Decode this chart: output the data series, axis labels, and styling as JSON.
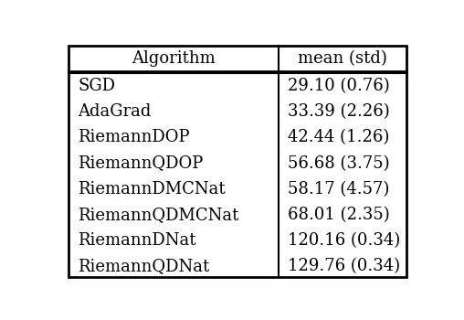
{
  "header": [
    "Algorithm",
    "mean (std)"
  ],
  "rows": [
    [
      "SGD",
      "29.10 (0.76)"
    ],
    [
      "AdaGrad",
      "33.39 (2.26)"
    ],
    [
      "RiemannDOP",
      "42.44 (1.26)"
    ],
    [
      "RiemannQDOP",
      "56.68 (3.75)"
    ],
    [
      "RiemannDMCNat",
      "58.17 (4.57)"
    ],
    [
      "RiemannQDMCNat",
      "68.01 (2.35)"
    ],
    [
      "RiemannDNat",
      "120.16 (0.34)"
    ],
    [
      "RiemannQDNat",
      "129.76 (0.34)"
    ]
  ],
  "col_split": 0.62,
  "background_color": "#ffffff",
  "text_color": "#000000",
  "border_color": "#000000",
  "font_size": 13,
  "header_font_size": 13
}
